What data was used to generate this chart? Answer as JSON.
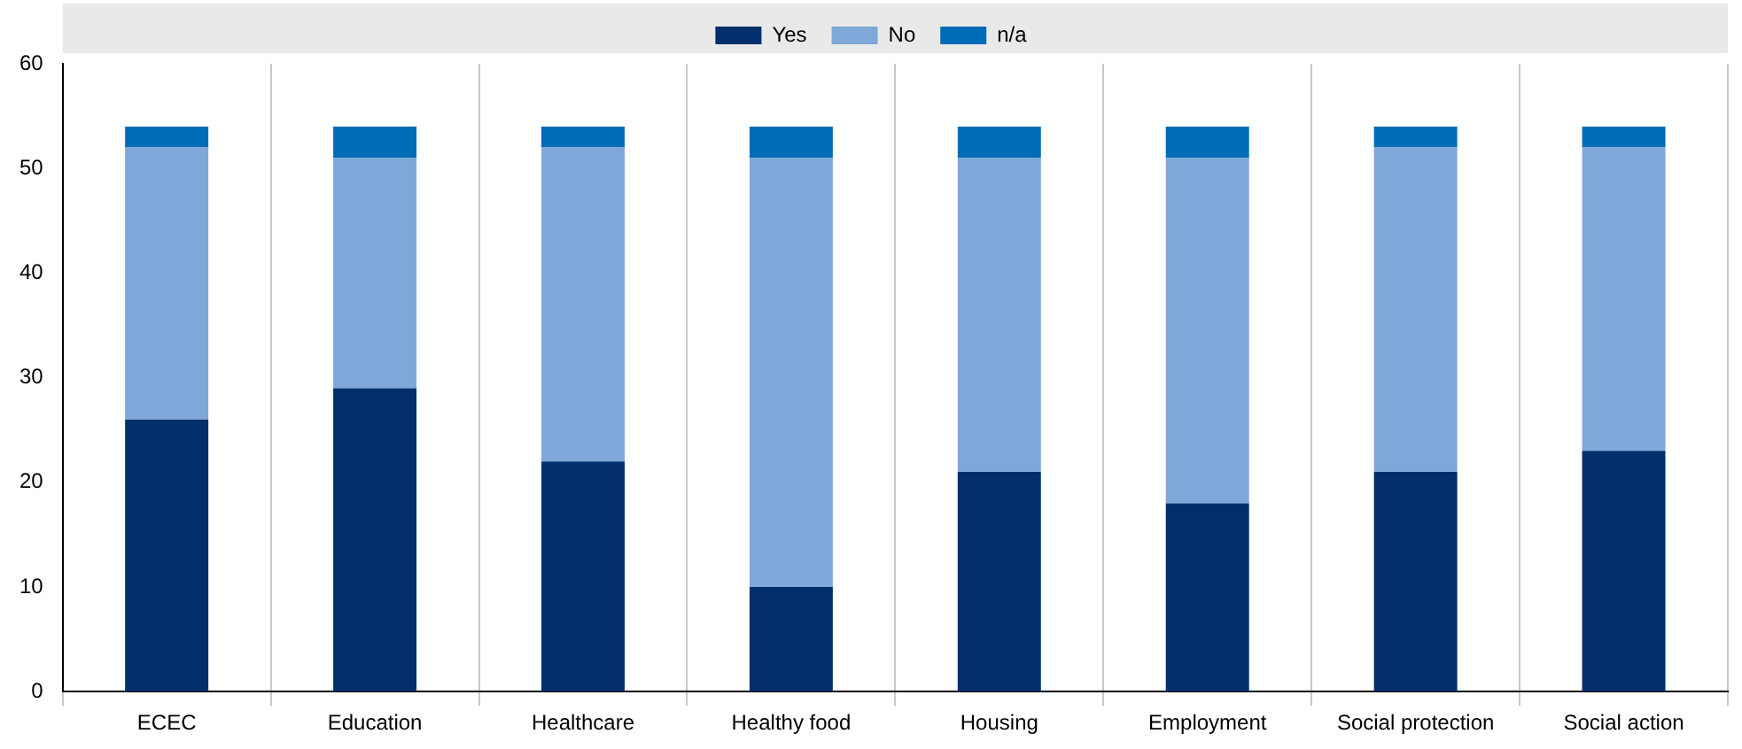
{
  "chart_data": {
    "type": "bar",
    "stacked": true,
    "categories": [
      "ECEC",
      "Education",
      "Healthcare",
      "Healthy food",
      "Housing",
      "Employment",
      "Social protection",
      "Social action"
    ],
    "series": [
      {
        "name": "Yes",
        "color": "#002f6c",
        "values": [
          26,
          29,
          22,
          10,
          21,
          18,
          21,
          23
        ]
      },
      {
        "name": "No",
        "color": "#7fa8d9",
        "values": [
          26,
          22,
          30,
          41,
          30,
          33,
          31,
          29
        ]
      },
      {
        "name": "n/a",
        "color": "#006bb6",
        "values": [
          2,
          3,
          2,
          3,
          3,
          3,
          2,
          2
        ]
      }
    ],
    "ylim": [
      0,
      60
    ],
    "yticks": [
      0,
      10,
      20,
      30,
      40,
      50,
      60
    ],
    "grid": "x",
    "legend": "top"
  }
}
